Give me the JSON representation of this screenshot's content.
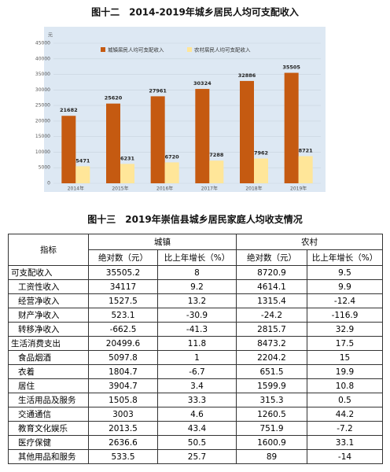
{
  "chart_data": {
    "type": "bar",
    "title": "图十二　2014-2019年城乡居民人均可支配收入",
    "ylabel": "元",
    "categories": [
      "2014年",
      "2015年",
      "2016年",
      "2017年",
      "2018年",
      "2019年"
    ],
    "series": [
      {
        "name": "城镇居民人均可支配收入",
        "color": "#c55a11",
        "values": [
          21682,
          25620,
          27961,
          30324,
          32886,
          35505
        ]
      },
      {
        "name": "农村居民人均可支配收入",
        "color": "#ffe699",
        "values": [
          5471,
          6231,
          6720,
          7288,
          7962,
          8721
        ]
      }
    ],
    "ylim": [
      0,
      45000
    ],
    "yticks": [
      0,
      5000,
      10000,
      15000,
      20000,
      25000,
      30000,
      35000,
      40000,
      45000
    ],
    "grid": true,
    "legend": "top"
  },
  "table": {
    "title": "图十三　2019年崇信县城乡居民家庭人均收支情况",
    "header": [
      "指标",
      "城镇",
      "农村"
    ],
    "subheader": [
      "绝对数（元）",
      "比上年增长（%）",
      "绝对数（元）",
      "比上年增长（%）"
    ],
    "rows": [
      [
        "可支配收入",
        "35505.2",
        "8",
        "8720.9",
        "9.5"
      ],
      [
        "工资性收入",
        "34117",
        "9.2",
        "4614.1",
        "9.9"
      ],
      [
        "经营净收入",
        "1527.5",
        "13.2",
        "1315.4",
        "-12.4"
      ],
      [
        "财产净收入",
        "523.1",
        "-30.9",
        "-24.2",
        "-116.9"
      ],
      [
        "转移净收入",
        "-662.5",
        "-41.3",
        "2815.7",
        "32.9"
      ],
      [
        "生活消费支出",
        "20499.6",
        "11.8",
        "8473.2",
        "17.5"
      ],
      [
        "食品烟酒",
        "5097.8",
        "1",
        "2204.2",
        "15"
      ],
      [
        "衣着",
        "1804.7",
        "-6.7",
        "651.5",
        "19.9"
      ],
      [
        "居住",
        "3904.7",
        "3.4",
        "1599.9",
        "10.8"
      ],
      [
        "生活用品及服务",
        "1505.8",
        "33.3",
        "315.3",
        "0.5"
      ],
      [
        "交通通信",
        "3003",
        "4.6",
        "1260.5",
        "44.2"
      ],
      [
        "教育文化娱乐",
        "2013.5",
        "43.4",
        "751.9",
        "-7.2"
      ],
      [
        "医疗保健",
        "2636.6",
        "50.5",
        "1600.9",
        "33.1"
      ],
      [
        "其他用品和服务",
        "533.5",
        "25.7",
        "89",
        "-14"
      ]
    ]
  }
}
